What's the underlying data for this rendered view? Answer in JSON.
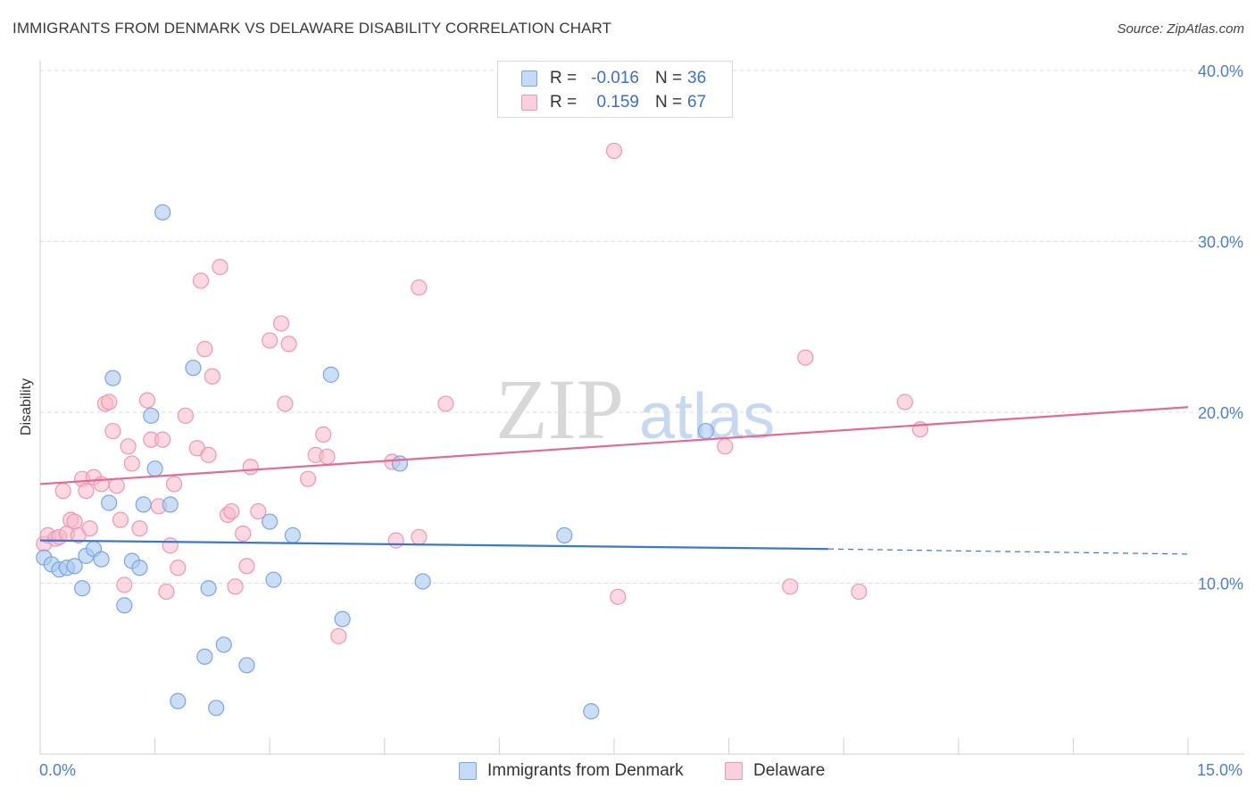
{
  "header": {
    "title": "IMMIGRANTS FROM DENMARK VS DELAWARE DISABILITY CORRELATION CHART",
    "source": "Source: ZipAtlas.com"
  },
  "watermark": {
    "zip": "ZIP",
    "atlas": "atlas"
  },
  "legend": {
    "rows": [
      {
        "r_label": "R =",
        "r_value": "-0.016",
        "n_label": "N =",
        "n_value": "36",
        "color": "#a9c8f0"
      },
      {
        "r_label": "R =",
        "r_value": "0.159",
        "n_label": "N =",
        "n_value": "67",
        "color": "#f7b8cb"
      }
    ]
  },
  "bottom_legend": {
    "series1": "Immigrants from Denmark",
    "series2": "Delaware"
  },
  "colors": {
    "blue_fill": "#a9c8f0",
    "blue_stroke": "#7aa6e0",
    "blue_line": "#3a78d0",
    "pink_fill": "#f7b8cb",
    "pink_stroke": "#ee97b2",
    "pink_line": "#e26a95",
    "tick_text": "#4a7fd0"
  },
  "chart_data": {
    "type": "scatter",
    "title": "IMMIGRANTS FROM DENMARK VS DELAWARE DISABILITY CORRELATION CHART",
    "xlabel": "",
    "ylabel": "Disability",
    "xlim": [
      0,
      15
    ],
    "ylim": [
      0,
      40
    ],
    "x_tick_labels": [
      "0.0%",
      "15.0%"
    ],
    "y_ticks": [
      10,
      20,
      30,
      40
    ],
    "y_tick_labels": [
      "10.0%",
      "20.0%",
      "30.0%",
      "40.0%"
    ],
    "grid": true,
    "series": [
      {
        "name": "Immigrants from Denmark",
        "r": -0.016,
        "n": 36,
        "trend": {
          "x0": 0,
          "y0": 12.5,
          "x1": 10.3,
          "y1": 12.0,
          "dashed_to_x": 15,
          "dashed_to_y": 11.7
        },
        "points": [
          [
            0.05,
            11.5
          ],
          [
            0.15,
            11.1
          ],
          [
            0.25,
            10.8
          ],
          [
            0.35,
            10.9
          ],
          [
            0.45,
            11.0
          ],
          [
            0.55,
            9.7
          ],
          [
            0.6,
            11.6
          ],
          [
            0.7,
            12.0
          ],
          [
            0.8,
            11.4
          ],
          [
            0.9,
            14.7
          ],
          [
            0.95,
            22.0
          ],
          [
            1.1,
            8.7
          ],
          [
            1.2,
            11.3
          ],
          [
            1.3,
            10.9
          ],
          [
            1.35,
            14.6
          ],
          [
            1.45,
            19.8
          ],
          [
            1.5,
            16.7
          ],
          [
            1.6,
            31.7
          ],
          [
            1.7,
            14.6
          ],
          [
            1.8,
            3.1
          ],
          [
            2.0,
            22.6
          ],
          [
            2.15,
            5.7
          ],
          [
            2.2,
            9.7
          ],
          [
            2.3,
            2.7
          ],
          [
            2.4,
            6.4
          ],
          [
            2.7,
            5.2
          ],
          [
            3.0,
            13.6
          ],
          [
            3.05,
            10.2
          ],
          [
            3.3,
            12.8
          ],
          [
            3.8,
            22.2
          ],
          [
            3.95,
            7.9
          ],
          [
            4.7,
            17.0
          ],
          [
            5.0,
            10.1
          ],
          [
            6.85,
            12.8
          ],
          [
            7.2,
            2.5
          ],
          [
            8.7,
            18.9
          ]
        ]
      },
      {
        "name": "Delaware",
        "r": 0.159,
        "n": 67,
        "trend": {
          "x0": 0,
          "y0": 15.8,
          "x1": 15,
          "y1": 20.3
        },
        "points": [
          [
            0.05,
            12.3
          ],
          [
            0.1,
            12.8
          ],
          [
            0.2,
            12.6
          ],
          [
            0.25,
            12.7
          ],
          [
            0.3,
            15.4
          ],
          [
            0.35,
            12.9
          ],
          [
            0.4,
            13.7
          ],
          [
            0.45,
            13.6
          ],
          [
            0.5,
            12.8
          ],
          [
            0.55,
            16.1
          ],
          [
            0.6,
            15.4
          ],
          [
            0.65,
            13.2
          ],
          [
            0.7,
            16.2
          ],
          [
            0.8,
            15.8
          ],
          [
            0.85,
            20.5
          ],
          [
            0.9,
            20.6
          ],
          [
            0.95,
            18.9
          ],
          [
            1.0,
            15.7
          ],
          [
            1.05,
            13.7
          ],
          [
            1.1,
            9.9
          ],
          [
            1.15,
            18.0
          ],
          [
            1.2,
            17.0
          ],
          [
            1.3,
            13.2
          ],
          [
            1.4,
            20.7
          ],
          [
            1.45,
            18.4
          ],
          [
            1.55,
            14.5
          ],
          [
            1.6,
            18.4
          ],
          [
            1.65,
            9.5
          ],
          [
            1.7,
            12.2
          ],
          [
            1.75,
            15.8
          ],
          [
            1.8,
            10.9
          ],
          [
            1.9,
            19.8
          ],
          [
            2.05,
            17.9
          ],
          [
            2.1,
            27.7
          ],
          [
            2.15,
            23.7
          ],
          [
            2.2,
            17.5
          ],
          [
            2.25,
            22.1
          ],
          [
            2.35,
            28.5
          ],
          [
            2.45,
            14.0
          ],
          [
            2.5,
            14.2
          ],
          [
            2.55,
            9.8
          ],
          [
            2.65,
            12.9
          ],
          [
            2.7,
            11.0
          ],
          [
            2.75,
            16.8
          ],
          [
            2.85,
            14.2
          ],
          [
            3.0,
            24.2
          ],
          [
            3.15,
            25.2
          ],
          [
            3.2,
            20.5
          ],
          [
            3.25,
            24.0
          ],
          [
            3.5,
            16.1
          ],
          [
            3.6,
            17.5
          ],
          [
            3.7,
            18.7
          ],
          [
            3.75,
            17.4
          ],
          [
            3.9,
            6.9
          ],
          [
            4.6,
            17.1
          ],
          [
            4.65,
            12.5
          ],
          [
            4.95,
            12.7
          ],
          [
            4.95,
            27.3
          ],
          [
            5.3,
            20.5
          ],
          [
            7.5,
            35.3
          ],
          [
            7.55,
            9.2
          ],
          [
            8.95,
            18.0
          ],
          [
            9.8,
            9.8
          ],
          [
            10.0,
            23.2
          ],
          [
            10.7,
            9.5
          ],
          [
            11.3,
            20.6
          ],
          [
            11.5,
            19.0
          ]
        ]
      }
    ]
  }
}
